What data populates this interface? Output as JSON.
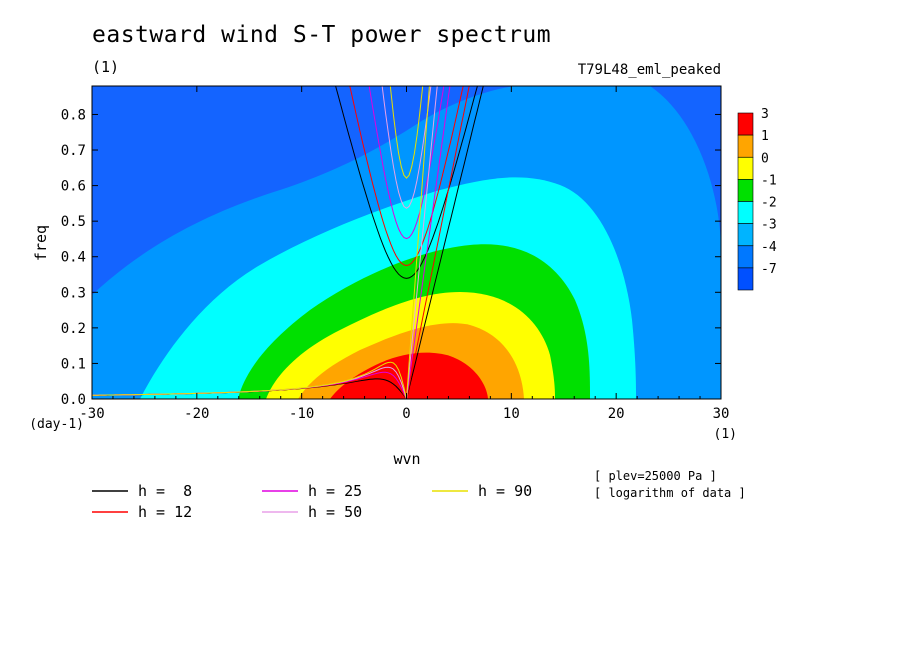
{
  "chart_data": {
    "type": "heatmap",
    "title": "eastward wind S-T power spectrum",
    "title_unit": "(1)",
    "run_label": "T79L48_eml_peaked",
    "xlabel": "wvn",
    "ylabel": "freq",
    "x_unit": "(1)",
    "y_unit": "(day-1)",
    "xlim": [
      -30,
      30
    ],
    "ylim": [
      0,
      0.88
    ],
    "x_ticks": [
      -30,
      -20,
      -10,
      0,
      10,
      20,
      30
    ],
    "x_tick_labels": [
      "-30",
      "-20",
      "-10",
      "0",
      "10",
      "20",
      "30"
    ],
    "y_ticks": [
      0,
      0.1,
      0.2,
      0.3,
      0.4,
      0.5,
      0.6,
      0.7,
      0.8
    ],
    "y_tick_labels": [
      "0.0",
      "0.1",
      "0.2",
      "0.3",
      "0.4",
      "0.5",
      "0.6",
      "0.7",
      "0.8"
    ],
    "notes": [
      "[ plev=25000 Pa ]",
      "[ logarithm of data ]"
    ],
    "colorbar": {
      "labels": [
        "3",
        "1",
        "0",
        "-1",
        "-2",
        "-3",
        "-4",
        "-7"
      ],
      "colors": [
        "#ff0000",
        "#ffa500",
        "#ffff00",
        "#00e000",
        "#00ffff",
        "#00b4ff",
        "#0078ff",
        "#0050ff"
      ]
    },
    "contour_fill": {
      "background_color": "#1464ff",
      "levels": [
        {
          "value": -4,
          "color": "#0096ff",
          "note": "lower band"
        },
        {
          "value": -3,
          "color": "#00ffff"
        },
        {
          "value": -2,
          "color": "#00e000"
        },
        {
          "value": -1,
          "color": "#ffff00"
        },
        {
          "value": 0,
          "color": "#ffa500"
        },
        {
          "value": 1,
          "color": "#ff0000"
        }
      ]
    },
    "dispersion_curves": [
      {
        "label": "h =  8",
        "h": 8,
        "color": "#000000"
      },
      {
        "label": "h = 12",
        "h": 12,
        "color": "#ff0000"
      },
      {
        "label": "h = 25",
        "h": 25,
        "color": "#e000e0"
      },
      {
        "label": "h = 50",
        "h": 50,
        "color": "#e8a0e8"
      },
      {
        "label": "h = 90",
        "h": 90,
        "color": "#e8e000"
      }
    ]
  }
}
